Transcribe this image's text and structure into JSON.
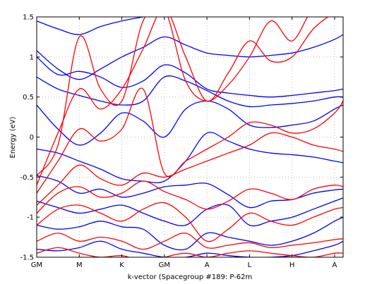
{
  "chart_data": {
    "type": "line",
    "xlabel": "k-vector (Spacegroup #189: P-62m",
    "ylabel": "Energy (eV)",
    "ylim": [
      -1.5,
      1.5
    ],
    "xlim": [
      0,
      7.2
    ],
    "grid": true,
    "x_ticks": [
      {
        "label": "GM",
        "x": 0
      },
      {
        "label": "M",
        "x": 1.0
      },
      {
        "label": "K",
        "x": 2.0
      },
      {
        "label": "GM",
        "x": 3.0
      },
      {
        "label": "A",
        "x": 4.0
      },
      {
        "label": "L",
        "x": 5.0
      },
      {
        "label": "H",
        "x": 6.0
      },
      {
        "label": "A",
        "x": 7.0
      }
    ],
    "y_ticks": [
      {
        "label": "-1.5",
        "y": -1.5
      },
      {
        "label": "-1",
        "y": -1.0
      },
      {
        "label": "-0.5",
        "y": -0.5
      },
      {
        "label": "0",
        "y": 0
      },
      {
        "label": "0.5",
        "y": 0.5
      },
      {
        "label": "1",
        "y": 1.0
      },
      {
        "label": "1.5",
        "y": 1.5
      }
    ],
    "colors": {
      "spin_up": "#0000ff",
      "spin_down": "#ff0000"
    },
    "x": [
      0,
      0.5,
      1.0,
      1.5,
      2.0,
      2.5,
      3.0,
      3.5,
      4.0,
      4.5,
      5.0,
      5.5,
      6.0,
      6.5,
      7.0,
      7.2
    ],
    "series": [
      {
        "color": "#0000ff",
        "values": [
          1.45,
          1.35,
          1.28,
          1.38,
          1.45,
          1.5,
          1.55,
          1.55,
          1.55,
          1.55,
          1.55,
          1.55,
          1.55,
          1.55,
          1.55,
          1.55
        ]
      },
      {
        "color": "#0000ff",
        "values": [
          1.08,
          0.85,
          0.72,
          0.85,
          1.0,
          1.12,
          1.25,
          1.15,
          1.05,
          1.02,
          1.0,
          1.02,
          1.05,
          1.12,
          1.22,
          1.28
        ]
      },
      {
        "color": "#0000ff",
        "values": [
          1.0,
          0.78,
          0.82,
          0.75,
          0.62,
          0.7,
          0.9,
          0.8,
          0.6,
          0.55,
          0.52,
          0.5,
          0.52,
          0.55,
          0.58,
          0.6
        ]
      },
      {
        "color": "#0000ff",
        "values": [
          0.75,
          0.6,
          0.52,
          0.45,
          0.4,
          0.45,
          0.75,
          0.7,
          0.58,
          0.45,
          0.38,
          0.4,
          0.42,
          0.45,
          0.5,
          0.5
        ]
      },
      {
        "color": "#0000ff",
        "values": [
          0.4,
          0.1,
          -0.1,
          0.05,
          0.3,
          0.2,
          0.0,
          0.35,
          0.45,
          0.35,
          0.15,
          0.12,
          0.15,
          0.2,
          0.35,
          0.4
        ]
      },
      {
        "color": "#0000ff",
        "values": [
          -0.15,
          -0.2,
          -0.3,
          -0.4,
          -0.52,
          -0.55,
          -0.55,
          -0.3,
          0.05,
          -0.05,
          -0.15,
          -0.2,
          -0.22,
          -0.25,
          -0.3,
          -0.32
        ]
      },
      {
        "color": "#0000ff",
        "values": [
          -0.48,
          -0.55,
          -0.7,
          -0.65,
          -0.75,
          -0.7,
          -0.62,
          -0.6,
          -0.58,
          -0.72,
          -0.88,
          -0.8,
          -0.78,
          -0.7,
          -0.66,
          -0.65
        ]
      },
      {
        "color": "#0000ff",
        "values": [
          -0.8,
          -0.88,
          -0.95,
          -0.9,
          -0.85,
          -0.95,
          -1.05,
          -1.1,
          -0.9,
          -0.85,
          -1.1,
          -1.05,
          -1.0,
          -0.9,
          -0.8,
          -0.76
        ]
      },
      {
        "color": "#0000ff",
        "values": [
          -1.1,
          -1.15,
          -1.12,
          -1.05,
          -1.12,
          -1.15,
          -1.35,
          -1.4,
          -1.2,
          -1.25,
          -1.3,
          -1.35,
          -1.3,
          -1.2,
          -1.05,
          -1.0
        ]
      },
      {
        "color": "#0000ff",
        "values": [
          -1.4,
          -1.42,
          -1.38,
          -1.3,
          -1.4,
          -1.45,
          -1.5,
          -1.5,
          -1.45,
          -1.48,
          -1.5,
          -1.5,
          -1.48,
          -1.42,
          -1.35,
          -1.3
        ]
      },
      {
        "color": "#ff0000",
        "values": [
          -0.48,
          -0.1,
          1.25,
          0.6,
          0.45,
          1.45,
          1.6,
          0.7,
          0.45,
          0.65,
          1.0,
          1.45,
          1.2,
          1.6,
          1.6,
          1.6
        ]
      },
      {
        "color": "#ff0000",
        "values": [
          -0.6,
          0.05,
          0.6,
          0.35,
          0.6,
          1.1,
          1.6,
          1.0,
          0.45,
          0.8,
          1.2,
          0.95,
          1.0,
          1.35,
          1.55,
          1.55
        ]
      },
      {
        "color": "#ff0000",
        "values": [
          -0.7,
          -0.3,
          0.1,
          -0.05,
          0.1,
          0.6,
          -0.45,
          -0.3,
          -0.15,
          0.0,
          0.18,
          0.15,
          0.05,
          0.1,
          0.3,
          0.45
        ]
      },
      {
        "color": "#ff0000",
        "values": [
          -0.85,
          -0.6,
          -0.35,
          -0.52,
          -0.6,
          -0.45,
          -0.5,
          -0.4,
          -0.3,
          -0.2,
          -0.1,
          0.05,
          0.0,
          -0.1,
          -0.15,
          -0.18
        ]
      },
      {
        "color": "#ff0000",
        "values": [
          -0.95,
          -0.7,
          -0.62,
          -0.75,
          -0.7,
          -0.55,
          -0.68,
          -0.78,
          -0.9,
          -0.8,
          -0.65,
          -0.7,
          -0.78,
          -0.65,
          -0.6,
          -0.62
        ]
      },
      {
        "color": "#ff0000",
        "values": [
          -1.1,
          -0.9,
          -0.85,
          -0.95,
          -1.05,
          -0.9,
          -0.82,
          -1.0,
          -1.3,
          -1.15,
          -0.95,
          -1.05,
          -1.1,
          -1.0,
          -0.9,
          -0.88
        ]
      },
      {
        "color": "#ff0000",
        "values": [
          -1.3,
          -1.2,
          -1.3,
          -1.25,
          -1.3,
          -1.4,
          -1.3,
          -1.2,
          -1.38,
          -1.35,
          -1.32,
          -1.38,
          -1.35,
          -1.32,
          -1.28,
          -1.27
        ]
      },
      {
        "color": "#ff0000",
        "values": [
          -1.45,
          -1.38,
          -1.45,
          -1.5,
          -1.48,
          -1.55,
          -1.5,
          -1.45,
          -1.5,
          -1.45,
          -1.42,
          -1.45,
          -1.48,
          -1.5,
          -1.45,
          -1.45
        ]
      }
    ]
  }
}
